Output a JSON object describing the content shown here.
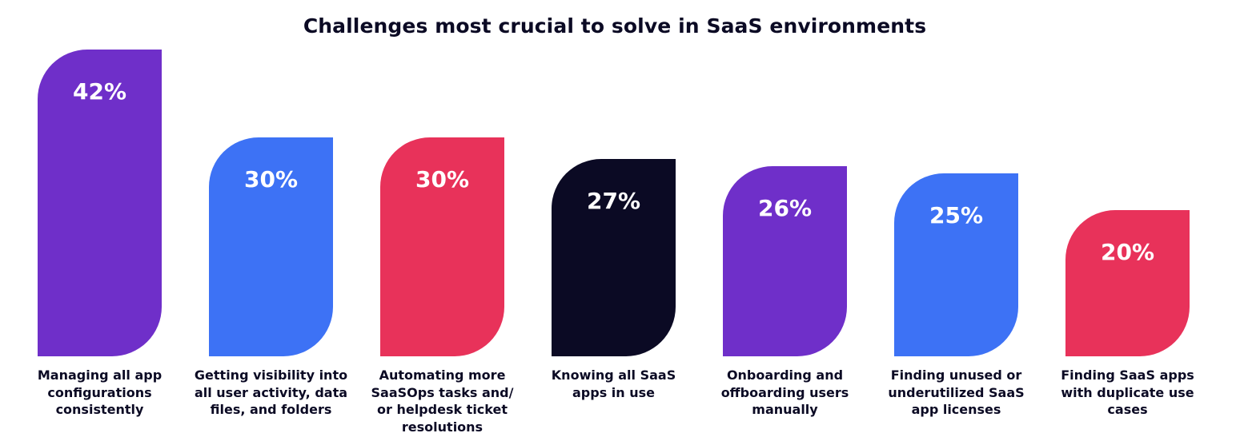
{
  "chart_data": {
    "type": "bar",
    "title": "Challenges most crucial to solve in SaaS environments",
    "categories": [
      "Managing all app\nconfigurations\nconsistently",
      "Getting visibility into\nall user activity, data\nfiles, and folders",
      "Automating more\nSaaSOps tasks and/\nor helpdesk ticket\nresolutions",
      "Knowing all SaaS\napps in use",
      "Onboarding and\noffboarding users\nmanually",
      "Finding unused or\nunderutilized SaaS\napp licenses",
      "Finding SaaS apps\nwith duplicate use\ncases"
    ],
    "values": [
      42,
      30,
      30,
      27,
      26,
      25,
      20
    ],
    "data_labels": [
      "42%",
      "30%",
      "30%",
      "27%",
      "26%",
      "25%",
      "20%"
    ],
    "colors": [
      "#6f2fc9",
      "#3d72f5",
      "#e8325a",
      "#0b0a24",
      "#6f2fc9",
      "#3d72f5",
      "#e8325a"
    ],
    "ylim": [
      0,
      42
    ],
    "grid": false,
    "legend": "none"
  }
}
